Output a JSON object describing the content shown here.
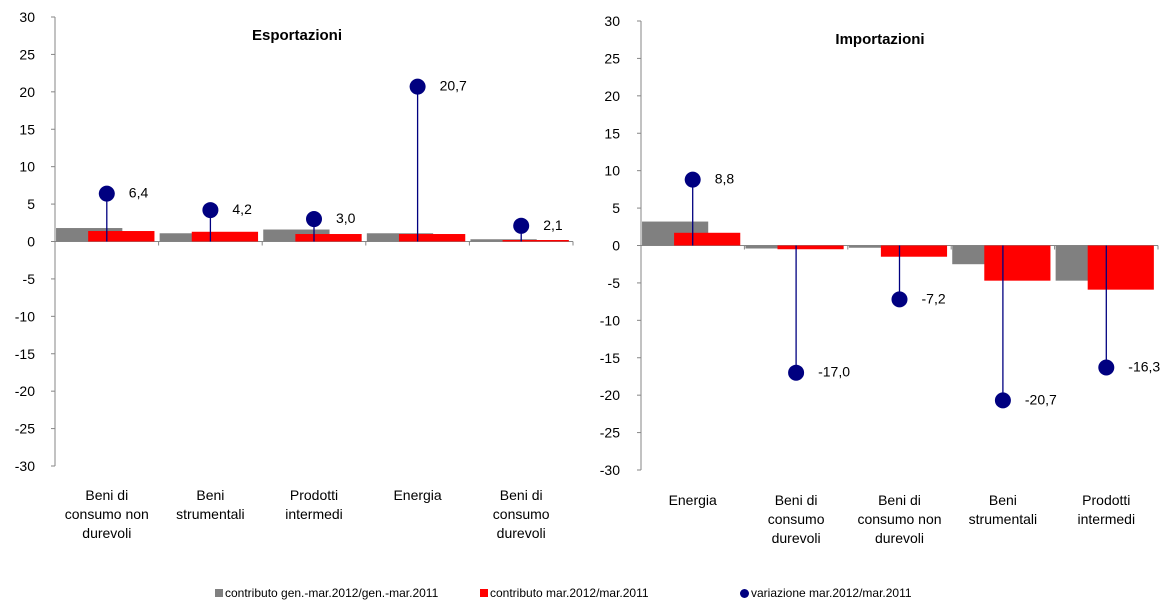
{
  "colors": {
    "cumulative": "#808080",
    "monthly": "#ff0000",
    "variation": "#000080"
  },
  "chart_data": [
    {
      "type": "bar",
      "title": "Esportazioni",
      "categories": [
        [
          "Beni di",
          "consumo non",
          "durevoli"
        ],
        [
          "Beni",
          "strumentali"
        ],
        [
          "Prodotti",
          "intermedi"
        ],
        [
          "Energia"
        ],
        [
          "Beni di",
          "consumo",
          "durevoli"
        ]
      ],
      "series": [
        {
          "name": "contributo gen.-mar.2012/gen.-mar.2011",
          "kind": "bar",
          "values": [
            1.8,
            1.1,
            1.6,
            1.1,
            0.3
          ]
        },
        {
          "name": "contributo mar.2012/mar.2011",
          "kind": "bar",
          "values": [
            1.4,
            1.3,
            1.0,
            1.0,
            0.2
          ]
        },
        {
          "name": "variazione mar.2012/mar.2011",
          "kind": "lollipop",
          "values": [
            6.4,
            4.2,
            3.0,
            20.7,
            2.1
          ],
          "labels": [
            "6,4",
            "4,2",
            "3,0",
            "20,7",
            "2,1"
          ]
        }
      ],
      "ylim": [
        -30,
        30
      ],
      "yticks": [
        30,
        25,
        20,
        15,
        10,
        5,
        0,
        -5,
        -10,
        -15,
        -20,
        -25,
        -30
      ],
      "grid": false
    },
    {
      "type": "bar",
      "title": "Importazioni",
      "categories": [
        [
          "Energia"
        ],
        [
          "Beni di",
          "consumo",
          "durevoli"
        ],
        [
          "Beni di",
          "consumo non",
          "durevoli"
        ],
        [
          "Beni",
          "strumentali"
        ],
        [
          "Prodotti",
          "intermedi"
        ]
      ],
      "series": [
        {
          "name": "contributo gen.-mar.2012/gen.-mar.2011",
          "kind": "bar",
          "values": [
            3.2,
            -0.4,
            -0.3,
            -2.5,
            -4.7
          ]
        },
        {
          "name": "contributo mar.2012/mar.2011",
          "kind": "bar",
          "values": [
            1.7,
            -0.5,
            -1.5,
            -4.7,
            -5.9
          ]
        },
        {
          "name": "variazione mar.2012/mar.2011",
          "kind": "lollipop",
          "values": [
            8.8,
            -17.0,
            -7.2,
            -20.7,
            -16.3
          ],
          "labels": [
            "8,8",
            "-17,0",
            "-7,2",
            "-20,7",
            "-16,3"
          ]
        }
      ],
      "ylim": [
        -30,
        30
      ],
      "yticks": [
        30,
        25,
        20,
        15,
        10,
        5,
        0,
        -5,
        -10,
        -15,
        -20,
        -25,
        -30
      ],
      "grid": false
    }
  ],
  "legend": [
    {
      "label": "contributo gen.-mar.2012/gen.-mar.2011",
      "marker": "square",
      "color": "#808080"
    },
    {
      "label": "contributo mar.2012/mar.2011",
      "marker": "square",
      "color": "#ff0000"
    },
    {
      "label": "variazione mar.2012/mar.2011",
      "marker": "circle",
      "color": "#000080"
    }
  ]
}
